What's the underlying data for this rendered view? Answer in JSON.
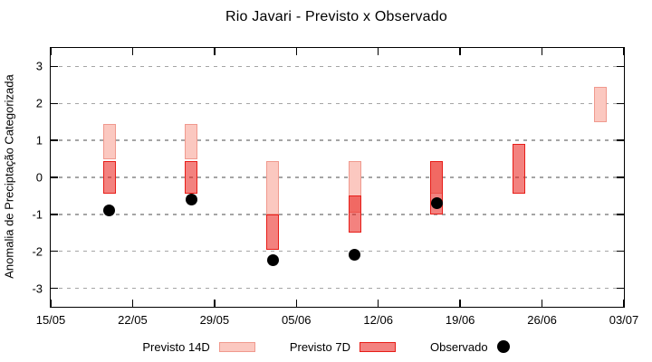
{
  "chart_data": {
    "type": "bar",
    "subtype": "range-bars-with-scatter-overlay",
    "title": "Rio Javari - Previsto x Observado",
    "xlabel": "",
    "ylabel": "Anomalia de Preciptação Categorizada",
    "ylim": [
      -3.5,
      3.5
    ],
    "y_ticks": [
      3,
      2,
      1,
      0,
      -1,
      -2,
      -3
    ],
    "grid": "horizontal dashed gray lines at every integer y value",
    "legend_position": "below chart, centered",
    "x_axis": {
      "tick_labels": [
        "15/05",
        "22/05",
        "29/05",
        "05/06",
        "12/06",
        "19/06",
        "26/06",
        "03/07"
      ],
      "tick_days": [
        0,
        7,
        14,
        21,
        28,
        35,
        42,
        49
      ],
      "range_days": [
        0,
        49
      ]
    },
    "series": [
      {
        "name": "Previsto 14D",
        "type": "range-bar",
        "style": "light pink filled box"
      },
      {
        "name": "Previsto 7D",
        "type": "range-bar",
        "style": "semi-transparent red filled box"
      },
      {
        "name": "Observado",
        "type": "scatter",
        "style": "black filled circle"
      }
    ],
    "groups": [
      {
        "date": "20/05",
        "day": 5,
        "previsto_14d": [
          0.5,
          1.45
        ],
        "previsto_7d": [
          -0.45,
          0.45
        ],
        "observado": -0.9
      },
      {
        "date": "27/05",
        "day": 12,
        "previsto_14d": [
          0.5,
          1.45
        ],
        "previsto_7d": [
          -0.45,
          0.45
        ],
        "observado": -0.6
      },
      {
        "date": "03/06",
        "day": 19,
        "previsto_14d": [
          -1.0,
          0.45
        ],
        "previsto_7d": [
          -1.95,
          -1.0
        ],
        "observado": -2.25
      },
      {
        "date": "10/06",
        "day": 26,
        "previsto_14d": [
          -0.95,
          0.45
        ],
        "previsto_7d": [
          -1.5,
          -0.5
        ],
        "observado": -2.1
      },
      {
        "date": "17/06",
        "day": 33,
        "previsto_14d": [
          -0.45,
          0.45
        ],
        "previsto_7d": [
          -1.0,
          0.45
        ],
        "observado": -0.7
      },
      {
        "date": "24/06",
        "day": 40,
        "previsto_14d": null,
        "previsto_7d": [
          -0.45,
          0.9
        ],
        "observado": null
      },
      {
        "date": "01/07",
        "day": 47,
        "previsto_14d": [
          1.5,
          2.45
        ],
        "previsto_7d": null,
        "observado": null
      }
    ],
    "colors": {
      "previsto_14d_fill": "#fbc8c0",
      "previsto_14d_border": "#f0998e",
      "previsto_7d_fill": "rgba(233,28,22,0.55)",
      "previsto_7d_border": "#e71d18",
      "observado": "#000000",
      "grid": "#a5a5a5",
      "axis": "#000000",
      "background": "#ffffff"
    },
    "legend": [
      {
        "label": "Previsto 14D",
        "marker": "box-14d"
      },
      {
        "label": "Previsto 7D",
        "marker": "box-7d"
      },
      {
        "label": "Observado",
        "marker": "dot"
      }
    ]
  }
}
